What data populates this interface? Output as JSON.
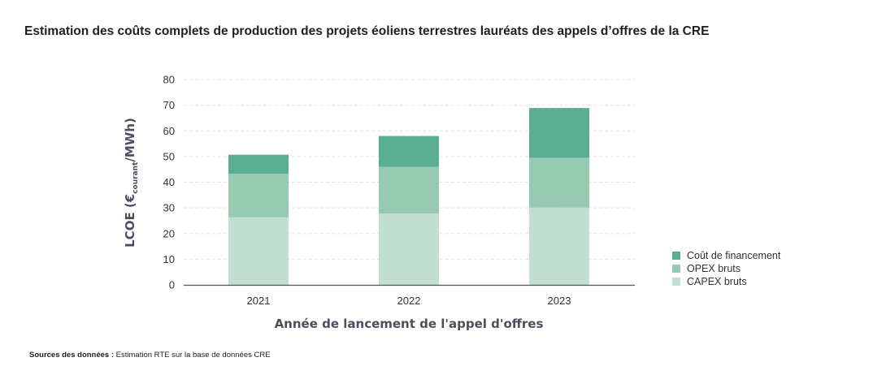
{
  "title": "Estimation des coûts complets de production des projets éoliens terrestres lauréats des appels d’offres de la CRE",
  "source": {
    "label": "Sources des données :",
    "text": " Estimation RTE sur la base de données CRE"
  },
  "colors": {
    "financement": "#5aaf93",
    "opex": "#98c9b3",
    "capex": "#c2dfd2",
    "grid": "#e3e3e3",
    "axis": "#555555"
  },
  "chart_data": {
    "type": "bar",
    "stacked": true,
    "categories": [
      "2021",
      "2022",
      "2023"
    ],
    "series": [
      {
        "name": "CAPEX bruts",
        "values": [
          26.3,
          27.8,
          30.1
        ]
      },
      {
        "name": "OPEX bruts",
        "values": [
          17.0,
          18.2,
          19.4
        ]
      },
      {
        "name": "Coût de financement",
        "values": [
          7.4,
          12.0,
          19.4
        ]
      }
    ],
    "xlabel": "Année de lancement de l'appel d'offres",
    "ylabel": {
      "main": "LCOE (€",
      "sub": "courant",
      "tail": "/MWh)"
    },
    "ylim": [
      0,
      80
    ],
    "yticks": [
      0,
      10,
      20,
      30,
      40,
      50,
      60,
      70,
      80
    ],
    "grid": true,
    "legend_position": "right",
    "legend_order": [
      "Coût de financement",
      "OPEX bruts",
      "CAPEX bruts"
    ]
  }
}
